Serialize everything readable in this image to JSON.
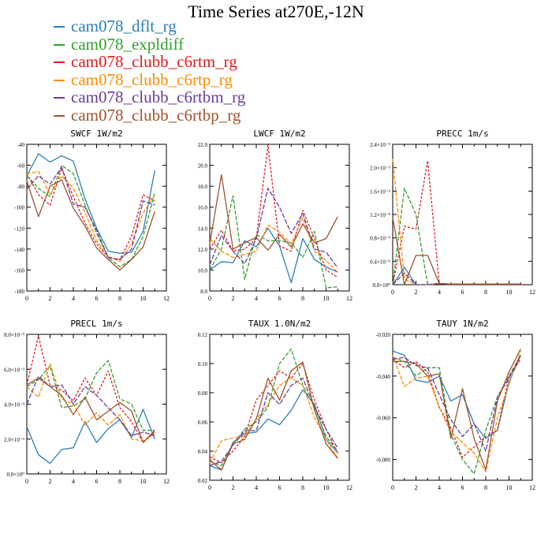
{
  "title": "Time Series at270E,-12N",
  "colors": {
    "c1": "#1f77b4",
    "c2": "#2ca02c",
    "c3": "#d62728",
    "c4": "#ff7f0e",
    "c5": "#6a3d9a",
    "c6": "#a0522d"
  },
  "legend": [
    {
      "label": "cam078_dflt_rg",
      "color": "#2c7fb8"
    },
    {
      "label": "cam078_expldiff",
      "color": "#33a02c"
    },
    {
      "label": "cam078_clubb_c6rtm_rg",
      "color": "#e31a1c"
    },
    {
      "label": "cam078_clubb_c6rtp_rg",
      "color": "#ff8c00"
    },
    {
      "label": "cam078_clubb_c6rtbm_rg",
      "color": "#6a3d9a"
    },
    {
      "label": "cam078_clubb_c6rtbp_rg",
      "color": "#a0522d"
    }
  ],
  "chart_data": [
    {
      "type": "line",
      "title": "SWCF 1W/m2",
      "xlim": [
        0,
        12
      ],
      "xticks": [
        0,
        2,
        4,
        6,
        8,
        10,
        12
      ],
      "ylim": [
        -180,
        -40
      ],
      "yticks": [
        "-40",
        "-60",
        "-80",
        "-100",
        "-120",
        "-140",
        "-160",
        "-180"
      ],
      "ytick_values": [
        -40,
        -60,
        -80,
        -100,
        -120,
        -140,
        -160,
        -180
      ],
      "x": [
        0,
        1,
        2,
        3,
        4,
        5,
        6,
        7,
        8,
        9,
        10,
        11
      ],
      "series": [
        {
          "name": "cam078_dflt_rg",
          "values": [
            -70,
            -49,
            -57,
            -51,
            -56,
            -92,
            -120,
            -142,
            -144,
            -143,
            -123,
            -65
          ]
        },
        {
          "name": "cam078_expldiff",
          "values": [
            -70,
            -82,
            -90,
            -60,
            -68,
            -98,
            -125,
            -148,
            -157,
            -150,
            -128,
            -86
          ]
        },
        {
          "name": "cam078_clubb_c6rtm_rg",
          "values": [
            -68,
            -88,
            -98,
            -63,
            -90,
            -115,
            -135,
            -148,
            -150,
            -128,
            -88,
            -94
          ]
        },
        {
          "name": "cam078_clubb_c6rtp_rg",
          "values": [
            -68,
            -66,
            -88,
            -70,
            -82,
            -105,
            -132,
            -147,
            -152,
            -135,
            -106,
            -88
          ]
        },
        {
          "name": "cam078_clubb_c6rtbm_rg",
          "values": [
            -83,
            -70,
            -78,
            -62,
            -97,
            -100,
            -122,
            -148,
            -150,
            -140,
            -94,
            -98
          ]
        },
        {
          "name": "cam078_clubb_c6rtbp_rg",
          "values": [
            -75,
            -109,
            -80,
            -74,
            -101,
            -118,
            -139,
            -150,
            -160,
            -150,
            -138,
            -104
          ]
        }
      ]
    },
    {
      "type": "line",
      "title": "LWCF 1W/m2",
      "xlim": [
        0,
        12
      ],
      "xticks": [
        0,
        2,
        4,
        6,
        8,
        10,
        12
      ],
      "ylim": [
        8,
        22
      ],
      "yticks": [
        "22.0",
        "20.0",
        "18.0",
        "16.0",
        "14.0",
        "12.0",
        "10.0",
        "8.0"
      ],
      "ytick_values": [
        22,
        20,
        18,
        16,
        14,
        12,
        10,
        8
      ],
      "x": [
        0,
        1,
        2,
        3,
        4,
        5,
        6,
        7,
        8,
        9,
        10,
        11
      ],
      "series": [
        {
          "name": "cam078_dflt_rg",
          "values": [
            10.0,
            10.8,
            10.7,
            12.8,
            12.2,
            14.0,
            12.3,
            8.8,
            13.0,
            11.0,
            10.3,
            9.8
          ]
        },
        {
          "name": "cam078_expldiff",
          "values": [
            10.0,
            12.0,
            17.1,
            9.1,
            13.4,
            12.8,
            12.8,
            12.6,
            11.2,
            13.7,
            8.3,
            8.4
          ]
        },
        {
          "name": "cam078_clubb_c6rtm_rg",
          "values": [
            12.0,
            13.8,
            11.8,
            12.0,
            13.0,
            21.9,
            12.3,
            11.8,
            15.7,
            13.0,
            10.0,
            9.3
          ]
        },
        {
          "name": "cam078_clubb_c6rtp_rg",
          "values": [
            13.0,
            11.8,
            11.2,
            11.5,
            11.8,
            14.3,
            13.6,
            12.5,
            15.0,
            11.8,
            10.9,
            9.8
          ]
        },
        {
          "name": "cam078_clubb_c6rtbm_rg",
          "values": [
            10.5,
            13.3,
            11.8,
            10.6,
            13.0,
            17.8,
            16.0,
            13.5,
            15.4,
            12.0,
            11.7,
            10.2
          ]
        },
        {
          "name": "cam078_clubb_c6rtbp_rg",
          "values": [
            12.5,
            19.1,
            12.0,
            12.6,
            13.1,
            11.9,
            13.4,
            12.2,
            14.4,
            12.6,
            13.0,
            15.1
          ]
        }
      ]
    },
    {
      "type": "line",
      "title": "PRECC 1m/s",
      "xlim": [
        0,
        12
      ],
      "xticks": [
        0,
        2,
        4,
        6,
        8,
        10,
        12
      ],
      "ylim": [
        0,
        2.4
      ],
      "yticks": [
        "2.4×10⁻⁹",
        "2.0×10⁻⁹",
        "1.6×10⁻⁹",
        "1.2×10⁻⁹",
        "0.8×10⁻⁹",
        "0.4×10⁻⁹",
        "0.0×10⁰"
      ],
      "ytick_values": [
        2.4,
        2.0,
        1.6,
        1.2,
        0.8,
        0.4,
        0.0
      ],
      "x": [
        0,
        1,
        2,
        3,
        4,
        5,
        6,
        7,
        8,
        9,
        10,
        11
      ],
      "series": [
        {
          "name": "cam078_dflt_rg",
          "values": [
            0.0,
            0.3,
            0.0,
            0.0,
            0.02,
            0.01,
            0.01,
            0.01,
            0.01,
            0.01,
            0.01,
            0.01
          ]
        },
        {
          "name": "cam078_expldiff",
          "values": [
            0.0,
            1.65,
            1.2,
            0.0,
            0.02,
            0.01,
            0.01,
            0.01,
            0.01,
            0.01,
            0.01,
            0.01
          ]
        },
        {
          "name": "cam078_clubb_c6rtm_rg",
          "values": [
            0.0,
            1.0,
            0.95,
            2.12,
            0.02,
            0.01,
            0.01,
            0.01,
            0.01,
            0.01,
            0.01,
            0.01
          ]
        },
        {
          "name": "cam078_clubb_c6rtp_rg",
          "values": [
            2.15,
            0.1,
            0.0,
            0.0,
            0.02,
            0.01,
            0.01,
            0.01,
            0.01,
            0.01,
            0.01,
            0.01
          ]
        },
        {
          "name": "cam078_clubb_c6rtbm_rg",
          "values": [
            0.0,
            0.2,
            0.0,
            0.0,
            0.02,
            0.01,
            0.01,
            0.01,
            0.01,
            0.01,
            0.01,
            0.01
          ]
        },
        {
          "name": "cam078_clubb_c6rtbp_rg",
          "values": [
            1.15,
            0.0,
            0.5,
            0.5,
            0.02,
            0.01,
            0.01,
            0.01,
            0.01,
            0.01,
            0.01,
            0.01
          ]
        }
      ]
    },
    {
      "type": "line",
      "title": "PRECL 1m/s",
      "xlim": [
        0,
        12
      ],
      "xticks": [
        0,
        2,
        4,
        6,
        8,
        10,
        12
      ],
      "ylim": [
        0,
        8
      ],
      "yticks": [
        "8.0×10⁻⁹",
        "6.0×10⁻⁹",
        "4.0×10⁻⁹",
        "2.0×10⁻⁹",
        "0.0×10⁰"
      ],
      "ytick_values": [
        8,
        6,
        4,
        2,
        0
      ],
      "x": [
        0,
        1,
        2,
        3,
        4,
        5,
        6,
        7,
        8,
        9,
        10,
        11
      ],
      "series": [
        {
          "name": "cam078_dflt_rg",
          "values": [
            2.7,
            1.1,
            0.6,
            1.4,
            1.5,
            3.0,
            1.8,
            2.6,
            3.1,
            2.1,
            3.7,
            2.0
          ]
        },
        {
          "name": "cam078_expldiff",
          "values": [
            5.0,
            5.4,
            6.2,
            3.8,
            3.9,
            4.3,
            5.8,
            6.5,
            4.3,
            4.0,
            2.5,
            2.5
          ]
        },
        {
          "name": "cam078_clubb_c6rtm_rg",
          "values": [
            5.1,
            7.9,
            5.1,
            4.8,
            4.2,
            5.5,
            4.5,
            5.9,
            3.8,
            3.0,
            1.8,
            2.4
          ]
        },
        {
          "name": "cam078_clubb_c6rtp_rg",
          "values": [
            5.0,
            4.4,
            6.3,
            4.3,
            4.0,
            2.8,
            3.5,
            2.8,
            3.4,
            2.0,
            1.9,
            2.3
          ]
        },
        {
          "name": "cam078_clubb_c6rtbm_rg",
          "values": [
            4.0,
            5.6,
            5.0,
            5.1,
            4.0,
            5.0,
            4.5,
            3.8,
            3.1,
            2.2,
            2.4,
            2.2
          ]
        },
        {
          "name": "cam078_clubb_c6rtbp_rg",
          "values": [
            5.1,
            5.5,
            5.0,
            4.5,
            3.4,
            4.4,
            3.1,
            3.6,
            4.1,
            3.6,
            1.8,
            2.5
          ]
        }
      ]
    },
    {
      "type": "line",
      "title": "TAUX 1.0N/m2",
      "xlim": [
        0,
        12
      ],
      "xticks": [
        0,
        2,
        4,
        6,
        8,
        10,
        12
      ],
      "ylim": [
        0.02,
        0.12
      ],
      "yticks": [
        "0.12",
        "0.10",
        "0.08",
        "0.06",
        "0.04",
        "0.02"
      ],
      "ytick_values": [
        0.12,
        0.1,
        0.08,
        0.06,
        0.04,
        0.02
      ],
      "x": [
        0,
        1,
        2,
        3,
        4,
        5,
        6,
        7,
        8,
        9,
        10,
        11
      ],
      "series": [
        {
          "name": "cam078_dflt_rg",
          "values": [
            0.03,
            0.027,
            0.046,
            0.052,
            0.053,
            0.062,
            0.058,
            0.068,
            0.082,
            0.072,
            0.048,
            0.039
          ]
        },
        {
          "name": "cam078_expldiff",
          "values": [
            0.033,
            0.03,
            0.045,
            0.055,
            0.06,
            0.07,
            0.1,
            0.11,
            0.085,
            0.07,
            0.05,
            0.04
          ]
        },
        {
          "name": "cam078_clubb_c6rtm_rg",
          "values": [
            0.036,
            0.032,
            0.04,
            0.05,
            0.075,
            0.085,
            0.095,
            0.09,
            0.1,
            0.075,
            0.055,
            0.038
          ]
        },
        {
          "name": "cam078_clubb_c6rtp_rg",
          "values": [
            0.032,
            0.047,
            0.049,
            0.05,
            0.062,
            0.072,
            0.085,
            0.09,
            0.085,
            0.063,
            0.048,
            0.035
          ]
        },
        {
          "name": "cam078_clubb_c6rtbm_rg",
          "values": [
            0.03,
            0.033,
            0.044,
            0.054,
            0.054,
            0.08,
            0.072,
            0.085,
            0.09,
            0.07,
            0.055,
            0.042
          ]
        },
        {
          "name": "cam078_clubb_c6rtbp_rg",
          "values": [
            0.034,
            0.027,
            0.045,
            0.048,
            0.062,
            0.09,
            0.075,
            0.095,
            0.101,
            0.068,
            0.045,
            0.035
          ]
        }
      ]
    },
    {
      "type": "line",
      "title": "TAUY 1N/m2",
      "xlim": [
        0,
        12
      ],
      "xticks": [
        0,
        2,
        4,
        6,
        8,
        10,
        12
      ],
      "ylim": [
        -0.09,
        -0.02
      ],
      "yticks": [
        "-0.020",
        "-0.040",
        "-0.060",
        "-0.080"
      ],
      "ytick_values": [
        -0.02,
        -0.04,
        -0.06,
        -0.08
      ],
      "x": [
        0,
        1,
        2,
        3,
        4,
        5,
        6,
        7,
        8,
        9,
        10,
        11
      ],
      "series": [
        {
          "name": "cam078_dflt_rg",
          "values": [
            -0.028,
            -0.03,
            -0.042,
            -0.043,
            -0.04,
            -0.052,
            -0.049,
            -0.063,
            -0.07,
            -0.066,
            -0.043,
            -0.03
          ]
        },
        {
          "name": "cam078_expldiff",
          "values": [
            -0.031,
            -0.033,
            -0.04,
            -0.036,
            -0.036,
            -0.068,
            -0.08,
            -0.087,
            -0.066,
            -0.05,
            -0.04,
            -0.03
          ]
        },
        {
          "name": "cam078_clubb_c6rtm_rg",
          "values": [
            -0.032,
            -0.036,
            -0.033,
            -0.038,
            -0.055,
            -0.065,
            -0.079,
            -0.074,
            -0.069,
            -0.066,
            -0.04,
            -0.032
          ]
        },
        {
          "name": "cam078_clubb_c6rtp_rg",
          "values": [
            -0.03,
            -0.045,
            -0.041,
            -0.04,
            -0.055,
            -0.067,
            -0.072,
            -0.077,
            -0.086,
            -0.06,
            -0.044,
            -0.028
          ]
        },
        {
          "name": "cam078_clubb_c6rtbm_rg",
          "values": [
            -0.032,
            -0.031,
            -0.035,
            -0.036,
            -0.049,
            -0.061,
            -0.069,
            -0.063,
            -0.076,
            -0.05,
            -0.041,
            -0.03
          ]
        },
        {
          "name": "cam078_clubb_c6rtbp_rg",
          "values": [
            -0.033,
            -0.033,
            -0.034,
            -0.04,
            -0.039,
            -0.07,
            -0.046,
            -0.07,
            -0.085,
            -0.052,
            -0.038,
            -0.027
          ]
        }
      ]
    }
  ]
}
